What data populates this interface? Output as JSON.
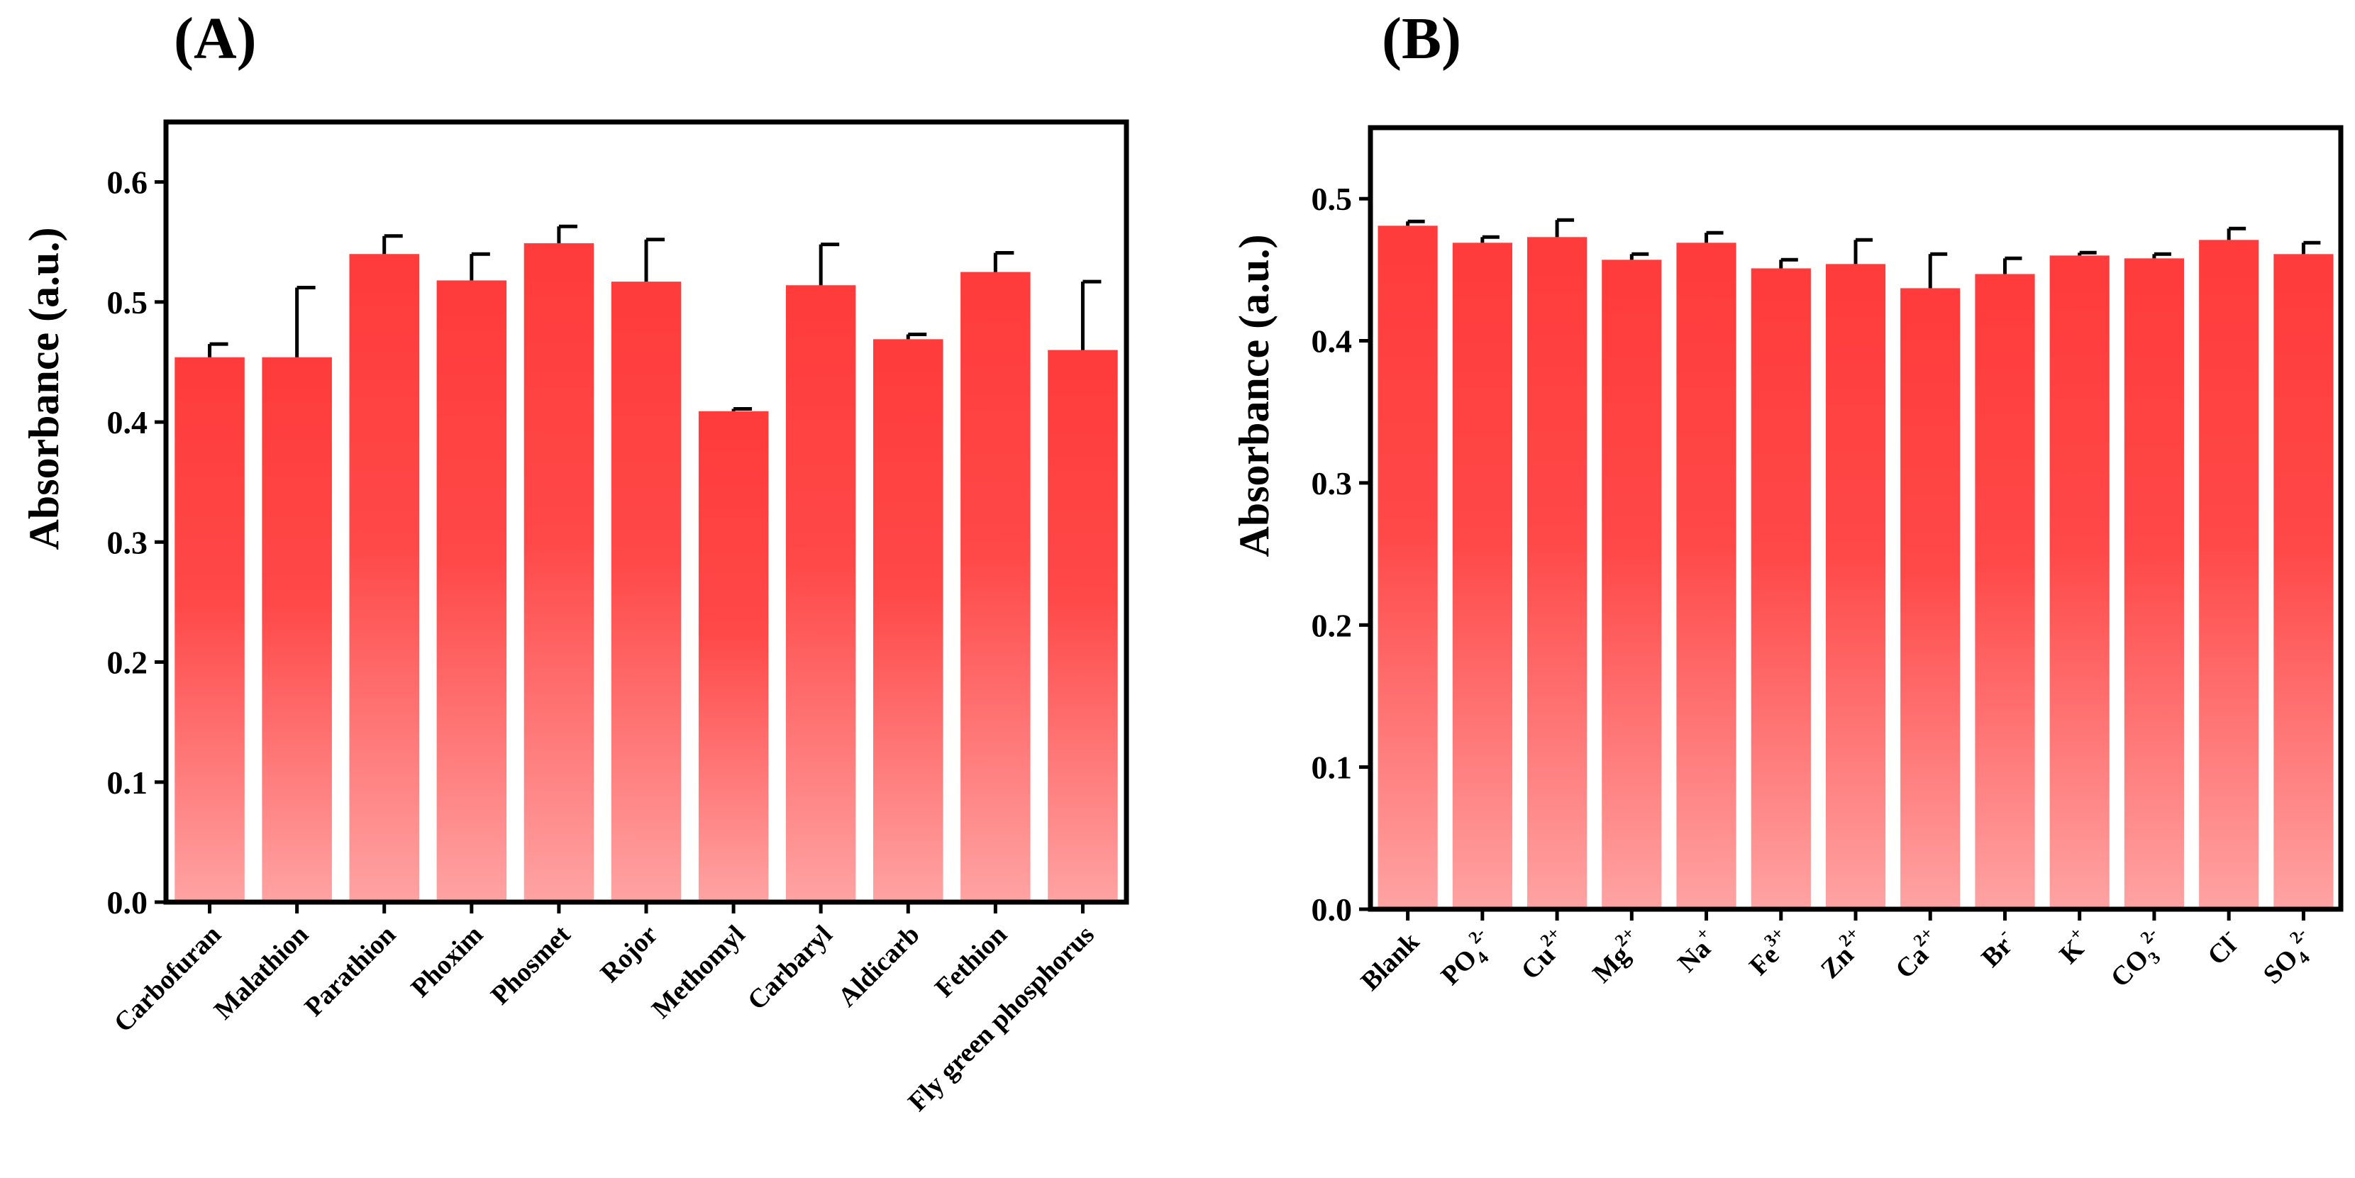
{
  "chart_data": [
    {
      "type": "bar",
      "panel_label": "(A)",
      "title": "",
      "xlabel": "",
      "ylabel": "Absorbance (a.u.)",
      "ylim": [
        0.0,
        0.65
      ],
      "yticks": [
        "0.0",
        "0.1",
        "0.2",
        "0.3",
        "0.4",
        "0.5",
        "0.6"
      ],
      "categories": [
        "Carbofuran",
        "Malathion",
        "Parathion",
        "Phoxim",
        "Phosmet",
        "Rojor",
        "Methomyl",
        "Carbaryl",
        "Aldicarb",
        "Fethion",
        "Fly green phosphorus"
      ],
      "values": [
        0.454,
        0.454,
        0.54,
        0.518,
        0.549,
        0.517,
        0.409,
        0.514,
        0.469,
        0.525,
        0.46
      ],
      "errors": [
        0.011,
        0.058,
        0.015,
        0.022,
        0.014,
        0.035,
        0.002,
        0.034,
        0.004,
        0.016,
        0.057
      ],
      "bar_color_top": "#ff3b3b",
      "bar_color_bottom": "#ffa3a3"
    },
    {
      "type": "bar",
      "panel_label": "(B)",
      "title": "",
      "xlabel": "",
      "ylabel": "Absorbance (a.u.)",
      "ylim": [
        0.0,
        0.55
      ],
      "yticks": [
        "0.0",
        "0.1",
        "0.2",
        "0.3",
        "0.4",
        "0.5"
      ],
      "categories": [
        {
          "base": "Blank"
        },
        {
          "base": "PO",
          "sub": "4",
          "sup": "2-"
        },
        {
          "base": "Cu",
          "sup": "2+"
        },
        {
          "base": "Mg",
          "sup": "2+"
        },
        {
          "base": "Na",
          "sup": "+"
        },
        {
          "base": "Fe",
          "sup": "3+"
        },
        {
          "base": "Zn",
          "sup": "2+"
        },
        {
          "base": "Ca",
          "sup": "2+"
        },
        {
          "base": "Br",
          "sup": "-"
        },
        {
          "base": "K",
          "sup": "+"
        },
        {
          "base": "CO",
          "sub": "3",
          "sup": "2-"
        },
        {
          "base": "Cl",
          "sup": "-"
        },
        {
          "base": "SO",
          "sub": "4",
          "sup": "2-"
        }
      ],
      "values": [
        0.481,
        0.469,
        0.473,
        0.457,
        0.469,
        0.451,
        0.454,
        0.437,
        0.447,
        0.46,
        0.458,
        0.471,
        0.461
      ],
      "errors": [
        0.003,
        0.004,
        0.012,
        0.004,
        0.007,
        0.006,
        0.017,
        0.024,
        0.011,
        0.002,
        0.003,
        0.008,
        0.008
      ],
      "bar_color_top": "#ff3b3b",
      "bar_color_bottom": "#ffa3a3"
    }
  ]
}
